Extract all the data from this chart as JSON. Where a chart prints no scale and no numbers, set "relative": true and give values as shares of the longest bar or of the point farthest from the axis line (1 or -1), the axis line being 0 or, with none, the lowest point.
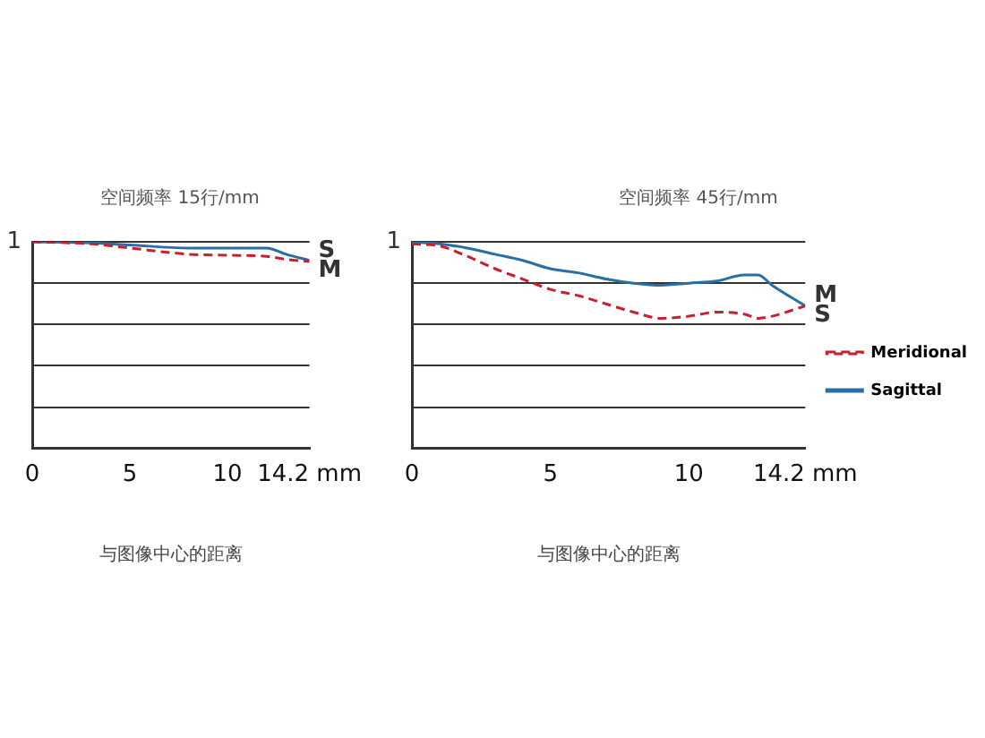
{
  "chart_data": [
    {
      "type": "line",
      "title": "空间频率 15行/mm",
      "xlabel": "与图像中心的距离",
      "relative": true,
      "xlim": [
        0,
        14.2
      ],
      "xticks": [
        0,
        5,
        10,
        {
          "value": 14.2,
          "label": "14.2 mm"
        }
      ],
      "grid": "y",
      "legend": false,
      "marker": "none",
      "series": [
        {
          "color": "#c8202f",
          "line_style": "dashed",
          "x": [
            0,
            3,
            5,
            8,
            10,
            12,
            13,
            14.2
          ],
          "values": [
            1.0,
            0.99,
            0.97,
            0.94,
            0.935,
            0.93,
            0.915,
            0.905
          ]
        },
        {
          "color": "#2a6ea6",
          "line_style": "solid",
          "x": [
            0,
            3,
            5,
            8,
            10,
            12,
            13,
            14.2
          ],
          "values": [
            1.0,
            0.995,
            0.985,
            0.97,
            0.97,
            0.97,
            0.94,
            0.91
          ]
        }
      ],
      "annotations": [
        "1",
        "S",
        "M"
      ]
    },
    {
      "type": "line",
      "title": "空间频率 45行/mm",
      "xlabel": "与图像中心的距离",
      "relative": true,
      "xlim": [
        0,
        14.2
      ],
      "xticks": [
        0,
        5,
        10,
        {
          "value": 14.2,
          "label": "14.2 mm"
        }
      ],
      "grid": "y",
      "legend": "right",
      "marker": "none",
      "series": [
        {
          "name": "Meridional",
          "color": "#c8202f",
          "line_style": "dashed",
          "x": [
            0,
            1,
            2,
            3,
            4,
            5,
            6,
            7,
            8,
            9,
            10,
            11,
            12,
            12.5,
            13,
            14.2
          ],
          "values": [
            0.99,
            0.98,
            0.93,
            0.87,
            0.82,
            0.77,
            0.74,
            0.7,
            0.66,
            0.63,
            0.64,
            0.66,
            0.65,
            0.63,
            0.64,
            0.69
          ]
        },
        {
          "name": "Sagittal",
          "color": "#2a6ea6",
          "line_style": "solid",
          "x": [
            0,
            1,
            2,
            3,
            4,
            5,
            6,
            7,
            8,
            9,
            10,
            11,
            12,
            12.5,
            13,
            14.2
          ],
          "values": [
            1.0,
            0.99,
            0.97,
            0.94,
            0.91,
            0.87,
            0.85,
            0.82,
            0.8,
            0.79,
            0.8,
            0.81,
            0.84,
            0.84,
            0.79,
            0.69
          ]
        }
      ],
      "annotations": [
        "1",
        "M",
        "S"
      ]
    }
  ]
}
